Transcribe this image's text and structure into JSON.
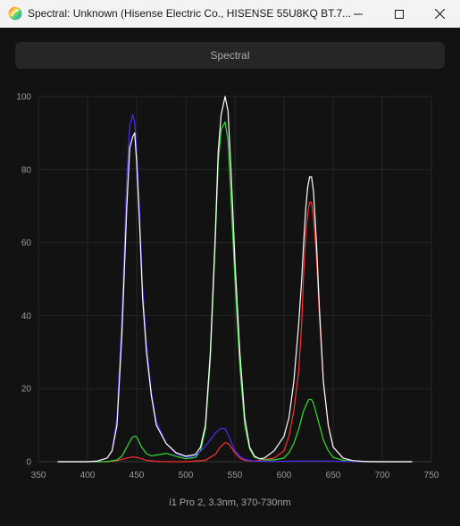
{
  "window": {
    "title": "Spectral: Unknown (Hisense Electric Co., HISENSE 55U8KQ BT.7...",
    "controls": {
      "minimize": "minimize-icon",
      "maximize": "maximize-icon",
      "close": "close-icon"
    }
  },
  "tab": {
    "label": "Spectral"
  },
  "footer": {
    "label": "i1 Pro 2, 3.3nm, 370-730nm"
  },
  "colors": {
    "background": "#121212",
    "white": "#ffffff",
    "red": "#ff3030",
    "green": "#30e030",
    "blue": "#4a2cff"
  },
  "chart_data": {
    "type": "line",
    "title": "",
    "xlabel": "",
    "ylabel": "",
    "xlim": [
      350,
      750
    ],
    "ylim": [
      0,
      100
    ],
    "x_ticks": [
      350,
      400,
      450,
      500,
      550,
      600,
      650,
      700,
      750
    ],
    "y_ticks": [
      0,
      20,
      40,
      60,
      80,
      100
    ],
    "grid": true,
    "series": [
      {
        "color": "#ffffff",
        "x": [
          370,
          380,
          390,
          400,
          410,
          420,
          425,
          430,
          435,
          440,
          443,
          446,
          448,
          450,
          453,
          456,
          460,
          465,
          470,
          480,
          490,
          500,
          510,
          515,
          520,
          525,
          530,
          533,
          536,
          540,
          543,
          546,
          550,
          555,
          560,
          565,
          570,
          575,
          580,
          590,
          600,
          605,
          610,
          615,
          618,
          620,
          622,
          624,
          626,
          628,
          630,
          633,
          636,
          640,
          645,
          650,
          660,
          670,
          680,
          690,
          700,
          710,
          720,
          730
        ],
        "y": [
          0,
          0,
          0,
          0,
          0.2,
          1,
          3,
          10,
          35,
          70,
          86,
          89,
          90,
          82,
          65,
          45,
          30,
          18,
          10,
          5,
          2.5,
          1.5,
          2,
          4,
          10,
          30,
          62,
          85,
          95,
          100,
          96,
          80,
          55,
          30,
          12,
          4,
          1.5,
          0.8,
          1,
          3,
          7,
          12,
          22,
          38,
          50,
          60,
          69,
          75,
          78,
          78,
          74,
          60,
          42,
          22,
          10,
          4,
          1,
          0.3,
          0.1,
          0,
          0,
          0,
          0,
          0
        ]
      },
      {
        "color": "#ff3030",
        "x": [
          370,
          400,
          420,
          430,
          440,
          445,
          450,
          455,
          460,
          470,
          480,
          500,
          520,
          530,
          535,
          540,
          543,
          546,
          550,
          555,
          560,
          570,
          590,
          600,
          605,
          610,
          615,
          618,
          620,
          622,
          624,
          626,
          628,
          630,
          633,
          636,
          640,
          645,
          650,
          660,
          670,
          680,
          700,
          730
        ],
        "y": [
          0,
          0,
          0,
          0.3,
          1,
          1.3,
          1.2,
          0.8,
          0.4,
          0.1,
          0,
          0,
          0.4,
          2,
          4,
          5.2,
          5,
          4,
          2.5,
          1,
          0.4,
          0.2,
          1,
          3,
          7,
          14,
          25,
          38,
          52,
          62,
          68,
          71,
          71,
          67,
          56,
          40,
          22,
          10,
          4,
          1,
          0.3,
          0.1,
          0,
          0
        ]
      },
      {
        "color": "#30e030",
        "x": [
          370,
          400,
          420,
          430,
          435,
          440,
          445,
          448,
          450,
          455,
          460,
          465,
          470,
          480,
          490,
          500,
          510,
          515,
          520,
          525,
          530,
          533,
          536,
          540,
          543,
          546,
          550,
          555,
          560,
          565,
          570,
          580,
          590,
          600,
          605,
          610,
          615,
          620,
          625,
          628,
          630,
          635,
          640,
          645,
          650,
          660,
          670,
          680,
          700,
          730
        ],
        "y": [
          0,
          0,
          0,
          0.5,
          1.5,
          4,
          6.5,
          7,
          6.8,
          4,
          2.2,
          1.6,
          1.8,
          2.3,
          1.5,
          0.8,
          1.2,
          3,
          9,
          28,
          60,
          82,
          91,
          93,
          88,
          72,
          50,
          26,
          10,
          3.5,
          1.2,
          0.5,
          0.5,
          1,
          2.5,
          5,
          9,
          14,
          17,
          17,
          16,
          11,
          6,
          3,
          1.2,
          0.4,
          0.1,
          0,
          0,
          0
        ]
      },
      {
        "color": "#4a2cff",
        "x": [
          370,
          400,
          410,
          420,
          425,
          430,
          435,
          440,
          443,
          446,
          448,
          450,
          453,
          456,
          460,
          465,
          470,
          480,
          490,
          500,
          505,
          510,
          515,
          520,
          525,
          530,
          535,
          538,
          540,
          543,
          546,
          550,
          555,
          560,
          570,
          580,
          600,
          620,
          640,
          660,
          700,
          730
        ],
        "y": [
          0,
          0,
          0.2,
          1,
          3,
          12,
          40,
          78,
          92,
          95,
          93,
          85,
          68,
          48,
          32,
          19,
          11,
          5,
          2.2,
          1.3,
          1.3,
          1.8,
          2.8,
          4.3,
          6,
          7.8,
          9,
          9.2,
          9,
          7.5,
          5.5,
          3,
          1.5,
          0.6,
          0.2,
          0.1,
          0.1,
          0.2,
          0.2,
          0.1,
          0,
          0
        ]
      }
    ]
  }
}
